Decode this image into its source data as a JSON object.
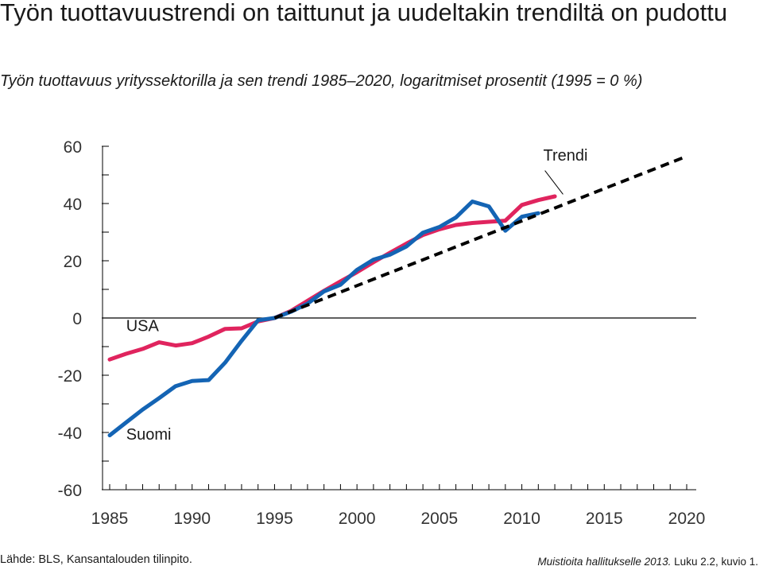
{
  "header": {
    "title": "Työn tuottavuustrendi on taittunut ja uudeltakin trendiltä on pudottu",
    "subtitle": "Työn tuottavuus yrityssektorilla ja sen trendi 1985–2020, logaritmiset prosentit (1995 = 0 %)"
  },
  "chart_data": {
    "type": "line",
    "xlim": [
      1985,
      2020
    ],
    "ylim": [
      -60,
      60
    ],
    "x_ticks": [
      1985,
      1990,
      1995,
      2000,
      2005,
      2010,
      2015,
      2020
    ],
    "y_ticks": [
      60,
      40,
      20,
      0,
      -20,
      -40,
      -60
    ],
    "grid": false,
    "legend": "none",
    "series": [
      {
        "name": "USA",
        "color": "#e0245e",
        "style": "solid",
        "x": [
          1985,
          1986,
          1987,
          1988,
          1989,
          1990,
          1991,
          1992,
          1993,
          1994,
          1995,
          1996,
          1997,
          1998,
          1999,
          2000,
          2001,
          2002,
          2003,
          2004,
          2005,
          2006,
          2007,
          2008,
          2009,
          2010,
          2011,
          2012
        ],
        "y": [
          -14.5,
          -12.5,
          -10.8,
          -8.5,
          -9.6,
          -8.8,
          -6.5,
          -3.8,
          -3.6,
          -1.2,
          0,
          2.5,
          6.0,
          9.5,
          12.8,
          16.0,
          19.5,
          22.8,
          26.0,
          29.0,
          31.0,
          32.5,
          33.2,
          33.6,
          34.0,
          39.5,
          41.2,
          42.5
        ]
      },
      {
        "name": "Suomi",
        "color": "#1464b4",
        "style": "solid",
        "x": [
          1985,
          1986,
          1987,
          1988,
          1989,
          1990,
          1991,
          1992,
          1993,
          1994,
          1995,
          1996,
          1997,
          1998,
          1999,
          2000,
          2001,
          2002,
          2003,
          2004,
          2005,
          2006,
          2007,
          2008,
          2009,
          2010,
          2011
        ],
        "y": [
          -41,
          -36.5,
          -32,
          -28,
          -23.8,
          -22,
          -21.7,
          -15.6,
          -8,
          -0.8,
          0,
          2.2,
          5.0,
          9.3,
          11.6,
          16.8,
          20.4,
          22.1,
          25.0,
          29.8,
          31.8,
          35.1,
          40.7,
          39.0,
          30.5,
          35.4,
          36.6
        ]
      },
      {
        "name": "Trendi",
        "color": "#000000",
        "style": "dashed",
        "x": [
          1995,
          2020
        ],
        "y": [
          0,
          56.5
        ]
      }
    ],
    "annotations": [
      {
        "text": "Trendi",
        "x": 2011.3,
        "y": 55
      },
      {
        "text": "USA",
        "x": 1986,
        "y": -4.6
      },
      {
        "text": "Suomi",
        "x": 1986,
        "y": -42.5
      }
    ]
  },
  "footer": {
    "source": "Lähde: BLS, Kansantalouden tilinpito.",
    "reference": "Muistioita hallitukselle 2013.",
    "reference_tail": " Luku 2.2, kuvio 1."
  }
}
